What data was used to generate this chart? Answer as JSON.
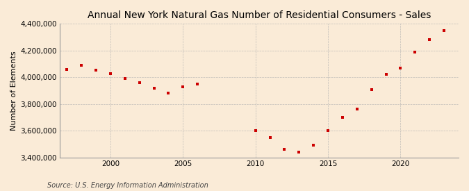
{
  "title": "Annual New York Natural Gas Number of Residential Consumers - Sales",
  "ylabel": "Number of Elements",
  "source": "Source: U.S. Energy Information Administration",
  "background_color": "#faebd7",
  "plot_background_color": "#faebd7",
  "marker_color": "#cc0000",
  "grid_color": "#b0b0b0",
  "years": [
    1997,
    1998,
    1999,
    2000,
    2001,
    2002,
    2003,
    2004,
    2005,
    2006,
    2010,
    2011,
    2012,
    2013,
    2014,
    2015,
    2016,
    2017,
    2018,
    2019,
    2020,
    2021,
    2022,
    2023
  ],
  "values": [
    4060000,
    4090000,
    4055000,
    4025000,
    3990000,
    3960000,
    3920000,
    3880000,
    3930000,
    3950000,
    3600000,
    3550000,
    3460000,
    3440000,
    3490000,
    3600000,
    3700000,
    3760000,
    3910000,
    4020000,
    4070000,
    4190000,
    4280000,
    4350000
  ],
  "ylim": [
    3400000,
    4400000
  ],
  "yticks": [
    3400000,
    3600000,
    3800000,
    4000000,
    4200000,
    4400000
  ],
  "xticks": [
    2000,
    2005,
    2010,
    2015,
    2020
  ],
  "xlim": [
    1996.5,
    2024
  ],
  "title_fontsize": 10,
  "tick_fontsize": 7.5,
  "ylabel_fontsize": 8,
  "source_fontsize": 7
}
